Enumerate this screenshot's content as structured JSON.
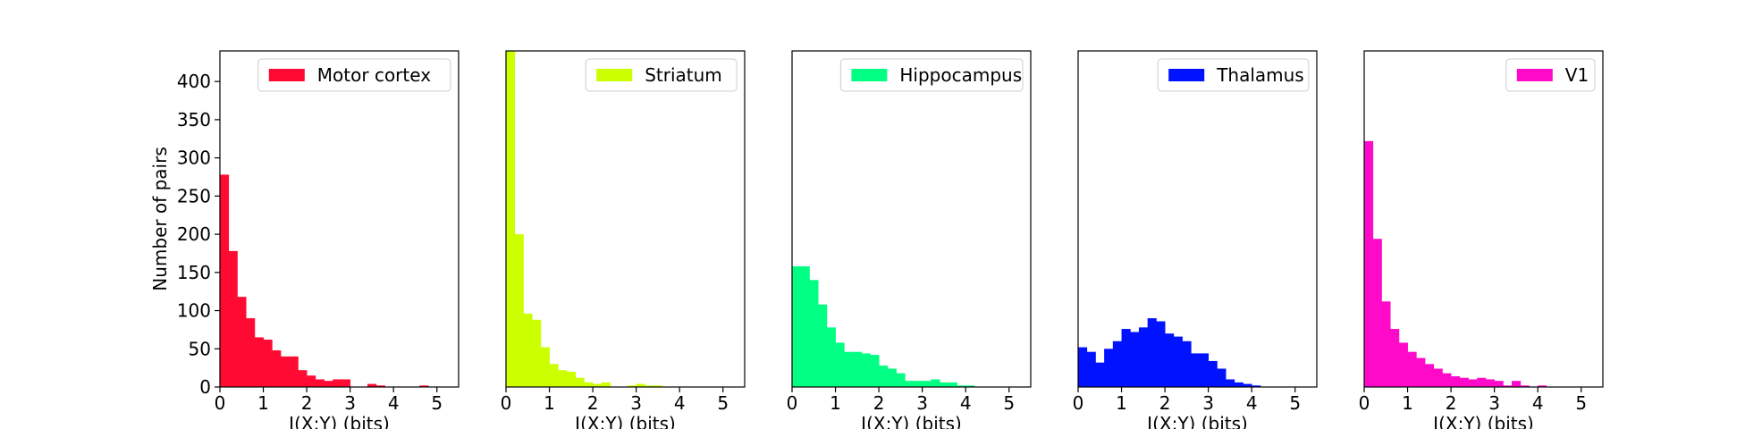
{
  "chart_data": [
    {
      "type": "bar",
      "legend": "Motor cortex",
      "color": "#ff0a32",
      "xlabel": "I(X;Y) (bits)",
      "ylabel": "Number of pairs",
      "xlim": [
        0,
        5.5
      ],
      "ylim": [
        0,
        440
      ],
      "xticks": [
        "0",
        "1",
        "2",
        "3",
        "4",
        "5"
      ],
      "yticks": [
        "0",
        "50",
        "100",
        "150",
        "200",
        "250",
        "300",
        "350",
        "400"
      ],
      "bin_width": 0.2,
      "x": [
        0.0,
        0.2,
        0.4,
        0.6,
        0.8,
        1.0,
        1.2,
        1.4,
        1.6,
        1.8,
        2.0,
        2.2,
        2.4,
        2.6,
        2.8,
        3.0,
        3.2,
        3.4,
        3.6,
        3.8,
        4.0,
        4.2,
        4.4,
        4.6,
        4.8,
        5.0
      ],
      "values": [
        278,
        178,
        118,
        90,
        65,
        62,
        48,
        40,
        40,
        22,
        15,
        10,
        8,
        10,
        10,
        0,
        0,
        4,
        2,
        0,
        0,
        0,
        0,
        2,
        0,
        0
      ],
      "legend_position": "upper right"
    },
    {
      "type": "bar",
      "legend": "Striatum",
      "color": "#ccff00",
      "xlabel": "I(X;Y) (bits)",
      "ylabel": "",
      "xlim": [
        0,
        5.5
      ],
      "ylim": [
        0,
        440
      ],
      "xticks": [
        "0",
        "1",
        "2",
        "3",
        "4",
        "5"
      ],
      "yticks": [],
      "bin_width": 0.2,
      "x": [
        0.0,
        0.2,
        0.4,
        0.6,
        0.8,
        1.0,
        1.2,
        1.4,
        1.6,
        1.8,
        2.0,
        2.2,
        2.4,
        2.6,
        2.8,
        3.0,
        3.2,
        3.4,
        3.6,
        3.8,
        4.0,
        4.2,
        4.4,
        4.6,
        4.8,
        5.0
      ],
      "values": [
        440,
        200,
        96,
        88,
        52,
        30,
        22,
        20,
        12,
        6,
        4,
        6,
        0,
        0,
        2,
        4,
        2,
        2,
        0,
        0,
        0,
        0,
        0,
        0,
        0,
        0
      ],
      "legend_position": "upper right"
    },
    {
      "type": "bar",
      "legend": "Hippocampus",
      "color": "#00ff82",
      "xlabel": "I(X;Y) (bits)",
      "ylabel": "",
      "xlim": [
        0,
        5.5
      ],
      "ylim": [
        0,
        440
      ],
      "xticks": [
        "0",
        "1",
        "2",
        "3",
        "4",
        "5"
      ],
      "yticks": [],
      "bin_width": 0.2,
      "x": [
        0.0,
        0.2,
        0.4,
        0.6,
        0.8,
        1.0,
        1.2,
        1.4,
        1.6,
        1.8,
        2.0,
        2.2,
        2.4,
        2.6,
        2.8,
        3.0,
        3.2,
        3.4,
        3.6,
        3.8,
        4.0,
        4.2,
        4.4,
        4.6,
        4.8,
        5.0
      ],
      "values": [
        158,
        158,
        140,
        108,
        78,
        58,
        46,
        46,
        44,
        42,
        28,
        24,
        18,
        8,
        8,
        8,
        10,
        6,
        6,
        2,
        2,
        0,
        0,
        0,
        0,
        0
      ],
      "legend_position": "upper right"
    },
    {
      "type": "bar",
      "legend": "Thalamus",
      "color": "#0012ff",
      "xlabel": "I(X;Y) (bits)",
      "ylabel": "",
      "xlim": [
        0,
        5.5
      ],
      "ylim": [
        0,
        440
      ],
      "xticks": [
        "0",
        "1",
        "2",
        "3",
        "4",
        "5"
      ],
      "yticks": [],
      "bin_width": 0.2,
      "x": [
        0.0,
        0.2,
        0.4,
        0.6,
        0.8,
        1.0,
        1.2,
        1.4,
        1.6,
        1.8,
        2.0,
        2.2,
        2.4,
        2.6,
        2.8,
        3.0,
        3.2,
        3.4,
        3.6,
        3.8,
        4.0,
        4.2,
        4.4,
        4.6,
        4.8,
        5.0
      ],
      "values": [
        52,
        46,
        32,
        50,
        60,
        76,
        72,
        78,
        90,
        86,
        70,
        66,
        60,
        44,
        44,
        34,
        24,
        10,
        6,
        4,
        2,
        0,
        0,
        0,
        0,
        0
      ],
      "legend_position": "upper right"
    },
    {
      "type": "bar",
      "legend": "V1",
      "color": "#ff0ac8",
      "xlabel": "I(X;Y) (bits)",
      "ylabel": "",
      "xlim": [
        0,
        5.5
      ],
      "ylim": [
        0,
        440
      ],
      "xticks": [
        "0",
        "1",
        "2",
        "3",
        "4",
        "5"
      ],
      "yticks": [],
      "bin_width": 0.2,
      "x": [
        0.0,
        0.2,
        0.4,
        0.6,
        0.8,
        1.0,
        1.2,
        1.4,
        1.6,
        1.8,
        2.0,
        2.2,
        2.4,
        2.6,
        2.8,
        3.0,
        3.2,
        3.4,
        3.6,
        3.8,
        4.0,
        4.2,
        4.4,
        4.6,
        4.8,
        5.0
      ],
      "values": [
        322,
        194,
        112,
        76,
        58,
        46,
        38,
        30,
        24,
        18,
        14,
        12,
        10,
        12,
        10,
        8,
        2,
        8,
        2,
        0,
        2,
        0,
        0,
        0,
        0,
        0
      ],
      "legend_position": "upper right"
    }
  ]
}
